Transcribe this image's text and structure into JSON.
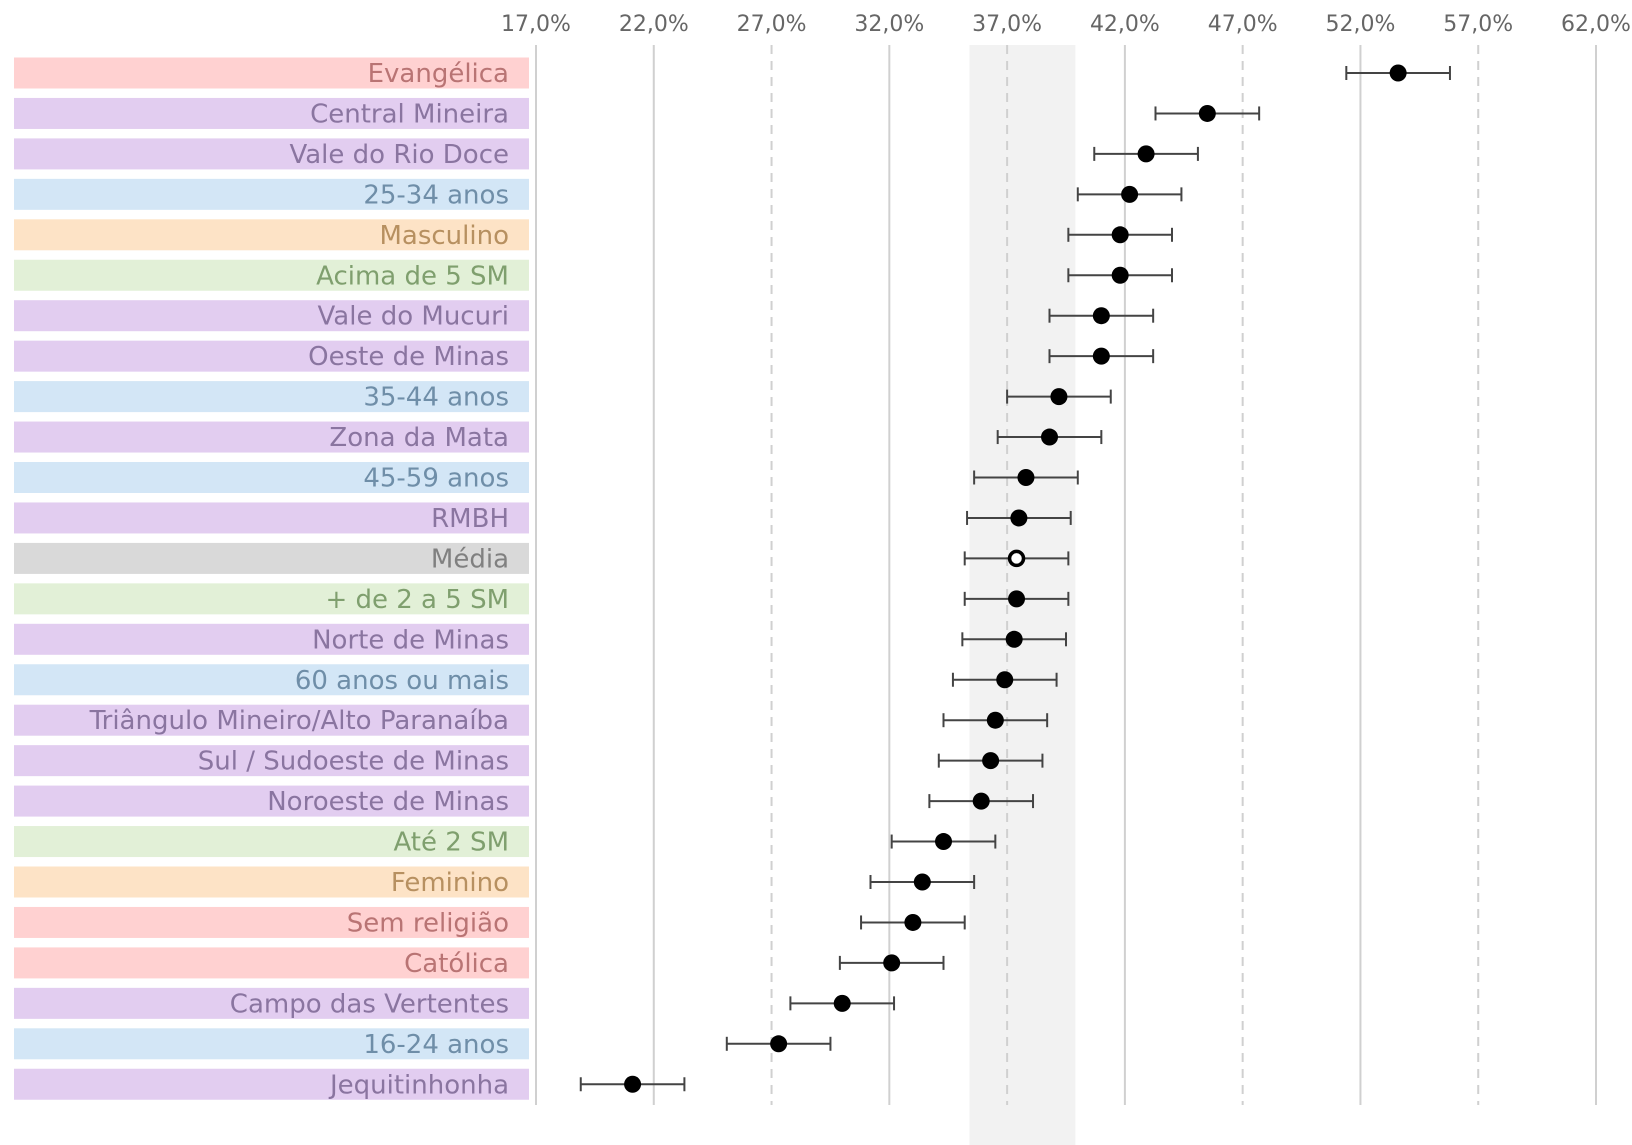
{
  "chart_data": {
    "type": "scatter",
    "subtype": "dot-plot-with-error-bars",
    "title": "",
    "xlabel": "",
    "ylabel": "",
    "xlim": [
      17.0,
      62.0
    ],
    "x_ticks": [
      "17,0%",
      "22,0%",
      "27,0%",
      "32,0%",
      "37,0%",
      "42,0%",
      "47,0%",
      "52,0%",
      "57,0%",
      "62,0%"
    ],
    "x_tick_values": [
      17,
      22,
      27,
      32,
      37,
      42,
      47,
      52,
      57,
      62
    ],
    "shaded_band": [
      35.4,
      39.9
    ],
    "error_margin": 2.2,
    "grid": "vertical",
    "legend": "none",
    "group_colors": {
      "religiao": {
        "fill": "#ffd1d1",
        "text": "#b97474"
      },
      "regiao": {
        "fill": "#e2cdf0",
        "text": "#8a75a0"
      },
      "idade": {
        "fill": "#d3e6f6",
        "text": "#6f8ea8"
      },
      "sexo": {
        "fill": "#fde3c6",
        "text": "#b79060"
      },
      "renda": {
        "fill": "#e2f0d7",
        "text": "#7f9f6e"
      },
      "media": {
        "fill": "#d9d9d9",
        "text": "#808080"
      }
    },
    "points": [
      {
        "label": "Evangélica",
        "group": "religiao",
        "value": 53.6
      },
      {
        "label": "Central Mineira",
        "group": "regiao",
        "value": 45.5
      },
      {
        "label": "Vale do Rio Doce",
        "group": "regiao",
        "value": 42.9
      },
      {
        "label": "25-34 anos",
        "group": "idade",
        "value": 42.2
      },
      {
        "label": "Masculino",
        "group": "sexo",
        "value": 41.8
      },
      {
        "label": "Acima de 5 SM",
        "group": "renda",
        "value": 41.8
      },
      {
        "label": "Vale do Mucuri",
        "group": "regiao",
        "value": 41.0
      },
      {
        "label": "Oeste de Minas",
        "group": "regiao",
        "value": 41.0
      },
      {
        "label": "35-44 anos",
        "group": "idade",
        "value": 39.2
      },
      {
        "label": "Zona da Mata",
        "group": "regiao",
        "value": 38.8
      },
      {
        "label": "45-59 anos",
        "group": "idade",
        "value": 37.8
      },
      {
        "label": "RMBH",
        "group": "regiao",
        "value": 37.5
      },
      {
        "label": "Média",
        "group": "media",
        "value": 37.4,
        "hollow": true
      },
      {
        "label": "+ de 2 a 5 SM",
        "group": "renda",
        "value": 37.4
      },
      {
        "label": "Norte de Minas",
        "group": "regiao",
        "value": 37.3
      },
      {
        "label": "60 anos ou mais",
        "group": "idade",
        "value": 36.9
      },
      {
        "label": "Triângulo Mineiro/Alto Paranaíba",
        "group": "regiao",
        "value": 36.5
      },
      {
        "label": "Sul / Sudoeste de Minas",
        "group": "regiao",
        "value": 36.3
      },
      {
        "label": "Noroeste de Minas",
        "group": "regiao",
        "value": 35.9
      },
      {
        "label": "Até 2 SM",
        "group": "renda",
        "value": 34.3
      },
      {
        "label": "Feminino",
        "group": "sexo",
        "value": 33.4
      },
      {
        "label": "Sem religião",
        "group": "religiao",
        "value": 33.0
      },
      {
        "label": "Católica",
        "group": "religiao",
        "value": 32.1
      },
      {
        "label": "Campo das Vertentes",
        "group": "regiao",
        "value": 30.0
      },
      {
        "label": "16-24 anos",
        "group": "idade",
        "value": 27.3
      },
      {
        "label": "Jequitinhonha",
        "group": "regiao",
        "value": 21.1
      }
    ]
  }
}
